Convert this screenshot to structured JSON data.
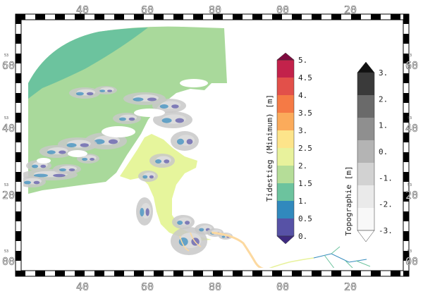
{
  "map": {
    "x_tick_labels": [
      "40",
      "60",
      "80",
      "00",
      "20"
    ],
    "y_tick_labels": [
      "60",
      "40",
      "20",
      "00"
    ],
    "y_tick_prefix": "53"
  },
  "legends": {
    "tidal_rise": {
      "title": "Tidestieg (Minimum) [m]",
      "labels": [
        "5.",
        "4.5",
        "4.",
        "3.5",
        "3.",
        "2.5",
        "2.",
        "1.5",
        "1.",
        "0.5",
        "0."
      ],
      "colors": [
        "#c3224b",
        "#e2504a",
        "#f57a45",
        "#fbab5b",
        "#fde48a",
        "#e8f29c",
        "#b5dd98",
        "#6cc39e",
        "#3189bd",
        "#5752a6"
      ],
      "top_cap_color": "#7f0b3f",
      "bottom_cap_color": "#3e2a80"
    },
    "topography": {
      "title": "Topographie [m]",
      "labels": [
        "3.",
        "2.",
        "1.",
        "0.",
        "-1.",
        "-2.",
        "-3."
      ],
      "colors": [
        "#3a3a3a",
        "#6a6a6a",
        "#8f8f8f",
        "#b4b4b4",
        "#d2d2d2",
        "#eaeaea",
        "#f8f8f8"
      ],
      "top_cap_color": "#111111",
      "bottom_cap_color": "#ffffff"
    }
  },
  "colors": {
    "sea": "#a9d99b",
    "deep_sea": "#6cc39e",
    "estuary": "#e6f59c",
    "land_gray": "#c8c8c8",
    "mud_gray": "#dcdcdc",
    "river_warm": "#fcd9a0"
  }
}
